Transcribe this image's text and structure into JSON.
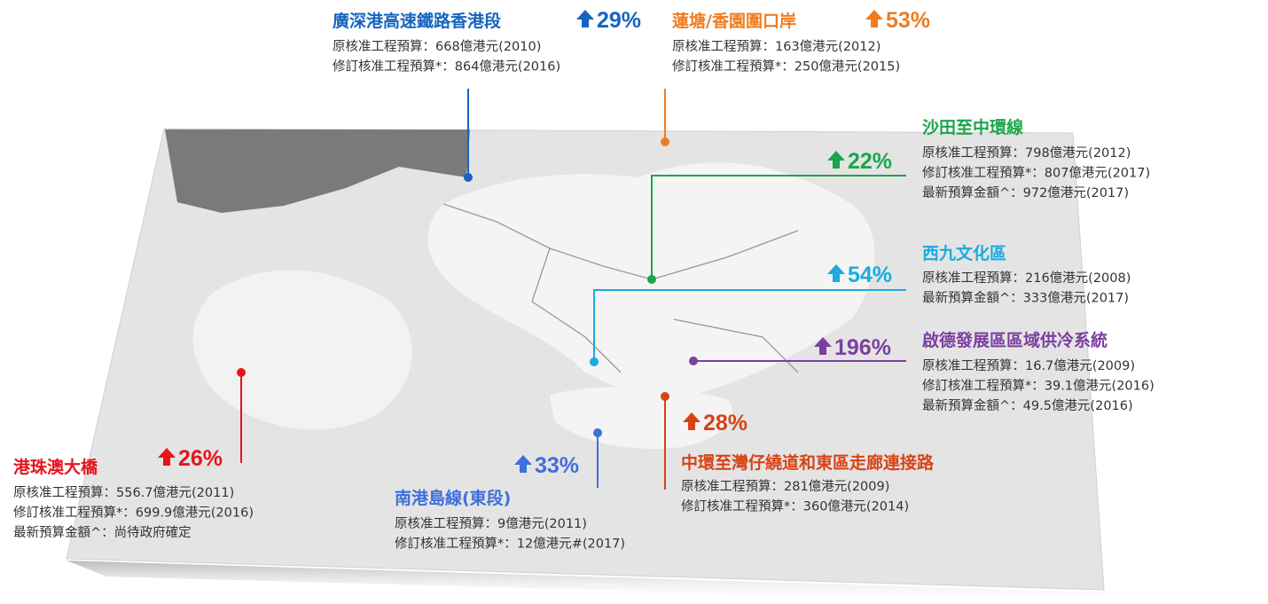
{
  "projects": [
    {
      "name": "廣深港高速鐵路香港段",
      "change": "29%",
      "lines": [
        "原核准工程預算：668億港元(2010)",
        "修訂核准工程預算*：864億港元(2016)"
      ]
    },
    {
      "name": "蓮塘/香園圍口岸",
      "change": "53%",
      "lines": [
        "原核准工程預算：163億港元(2012)",
        "修訂核准工程預算*：250億港元(2015)"
      ]
    },
    {
      "name": "沙田至中環線",
      "change": "22%",
      "lines": [
        "原核准工程預算：798億港元(2012)",
        "修訂核准工程預算*：807億港元(2017)",
        "最新預算金額^：972億港元(2017)"
      ]
    },
    {
      "name": "西九文化區",
      "change": "54%",
      "lines": [
        "原核准工程預算：216億港元(2008)",
        "最新預算金額^：333億港元(2017)"
      ]
    },
    {
      "name": "啟德發展區區域供冷系統",
      "change": "196%",
      "lines": [
        "原核准工程預算：16.7億港元(2009)",
        "修訂核准工程預算*：39.1億港元(2016)",
        "最新預算金額^：49.5億港元(2016)"
      ]
    },
    {
      "name": "中環至灣仔繞道和東區走廊連接路",
      "change": "28%",
      "lines": [
        "原核准工程預算：281億港元(2009)",
        "修訂核准工程預算*：360億港元(2014)"
      ]
    },
    {
      "name": "南港島線(東段)",
      "change": "33%",
      "lines": [
        "原核准工程預算：9億港元(2011)",
        "修訂核准工程預算*：12億港元#(2017)"
      ]
    },
    {
      "name": "港珠澳大橋",
      "change": "26%",
      "lines": [
        "原核准工程預算：556.7億港元(2011)",
        "修訂核准工程預算*：699.9億港元(2016)",
        "最新預算金額^：尚待政府確定"
      ]
    }
  ]
}
